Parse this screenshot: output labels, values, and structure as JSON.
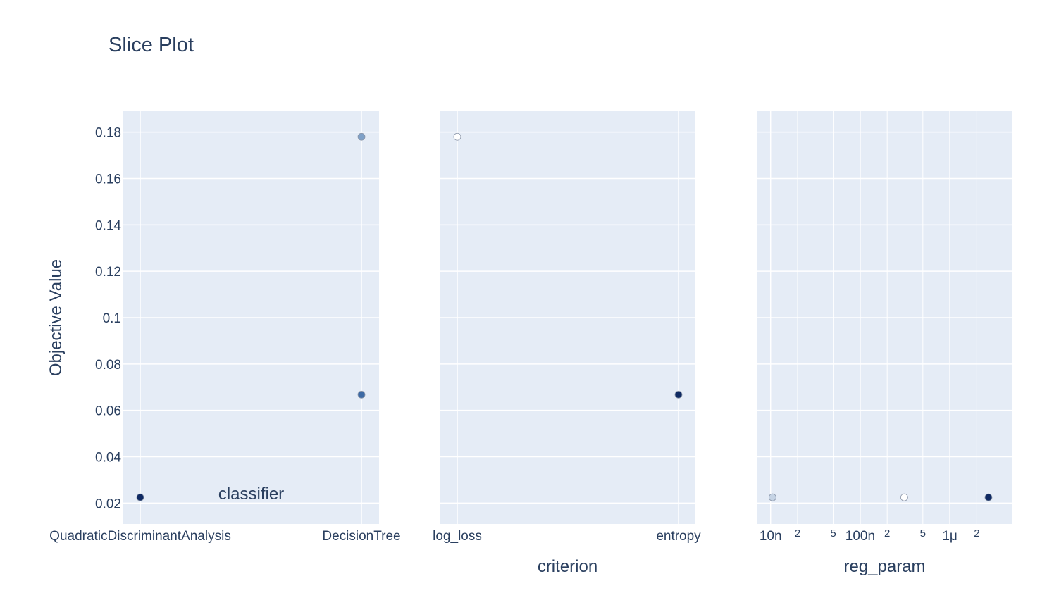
{
  "chart_data": {
    "type": "scatter",
    "title": "Slice Plot",
    "ylabel": "Objective Value",
    "ylim": [
      0.011,
      0.189
    ],
    "yticks": [
      0.02,
      0.04,
      0.06,
      0.08,
      0.1,
      0.12,
      0.14,
      0.16,
      0.18
    ],
    "ytick_labels": [
      "0.02",
      "0.04",
      "0.06",
      "0.08",
      "0.1",
      "0.12",
      "0.14",
      "0.16",
      "0.18"
    ],
    "grid": true,
    "marker_colors": [
      "#0f2a63",
      "#3d6aa5",
      "#7fa1c8",
      "#c5d3e4",
      "#ffffff"
    ],
    "panels": [
      {
        "name": "classifier",
        "xlabel": "classifier",
        "x_scale": "category",
        "categories": [
          "QuadraticDiscriminantAnalysis",
          "DecisionTree"
        ],
        "points": [
          {
            "x": "QuadraticDiscriminantAnalysis",
            "y": 0.0225,
            "color": "#0f2a63"
          },
          {
            "x": "DecisionTree",
            "y": 0.178,
            "color": "#7fa1c8"
          },
          {
            "x": "DecisionTree",
            "y": 0.0668,
            "color": "#3d6aa5"
          }
        ]
      },
      {
        "name": "criterion",
        "xlabel": "criterion",
        "x_scale": "category",
        "categories": [
          "log_loss",
          "entropy"
        ],
        "points": [
          {
            "x": "log_loss",
            "y": 0.178,
            "color": "#ffffff"
          },
          {
            "x": "entropy",
            "y": 0.0668,
            "color": "#0f2a63"
          }
        ]
      },
      {
        "name": "reg_param",
        "xlabel": "reg_param",
        "x_scale": "log",
        "xlim": [
          7e-09,
          5e-06
        ],
        "major_ticks": [
          {
            "value": 1e-08,
            "label": "10n"
          },
          {
            "value": 1e-07,
            "label": "100n"
          },
          {
            "value": 1e-06,
            "label": "1μ"
          }
        ],
        "minor_ticks": [
          {
            "value": 2e-08,
            "label": "2"
          },
          {
            "value": 5e-08,
            "label": "5"
          },
          {
            "value": 2e-07,
            "label": "2"
          },
          {
            "value": 5e-07,
            "label": "5"
          },
          {
            "value": 2e-06,
            "label": "2"
          }
        ],
        "points": [
          {
            "x": 1.05e-08,
            "y": 0.0225,
            "color": "#c5d3e4"
          },
          {
            "x": 3.1e-07,
            "y": 0.0225,
            "color": "#ffffff"
          },
          {
            "x": 2.7e-06,
            "y": 0.0225,
            "color": "#0f2a63"
          }
        ]
      }
    ]
  }
}
